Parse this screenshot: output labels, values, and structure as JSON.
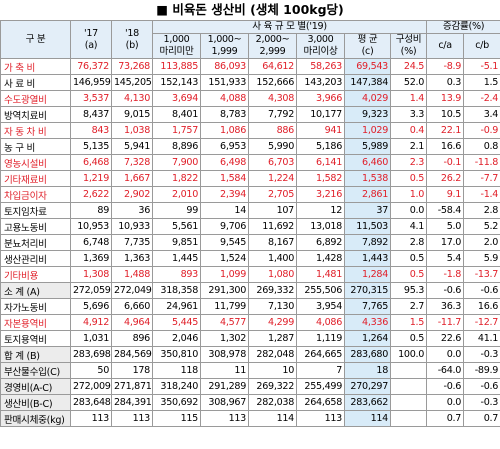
{
  "title": "■ 비육돈 생산비 (생체 100kg당)",
  "header": {
    "item": "구 분",
    "y2017": [
      "'17",
      "(a)"
    ],
    "y2018": [
      "'18",
      "(b)"
    ],
    "group_2019": "사 육 규 모 별('19)",
    "sizes": [
      [
        "1,000",
        "마리미만"
      ],
      [
        "1,000~",
        "1,999"
      ],
      [
        "2,000~",
        "2,999"
      ],
      [
        "3,000",
        "마리이상"
      ]
    ],
    "average": [
      "평 균",
      "(c)"
    ],
    "share": [
      "구성비",
      "(%)"
    ],
    "change": "증감률(%)",
    "ratios": [
      "c/a",
      "c/b"
    ]
  },
  "table": {
    "rows": [
      [
        "가 축 비",
        "76,372",
        "73,268",
        "113,885",
        "86,093",
        "64,612",
        "58,263",
        "69,543",
        "24.5",
        "-8.9",
        "-5.1"
      ],
      [
        "사 료 비",
        "146,959",
        "145,205",
        "152,143",
        "151,933",
        "152,666",
        "143,203",
        "147,384",
        "52.0",
        "0.3",
        "1.5"
      ],
      [
        "수도광열비",
        "3,537",
        "4,130",
        "3,694",
        "4,088",
        "4,308",
        "3,966",
        "4,029",
        "1.4",
        "13.9",
        "-2.4"
      ],
      [
        "방역치료비",
        "8,437",
        "9,015",
        "8,401",
        "8,783",
        "7,792",
        "10,177",
        "9,323",
        "3.3",
        "10.5",
        "3.4"
      ],
      [
        "자 동 차 비",
        "843",
        "1,038",
        "1,757",
        "1,086",
        "886",
        "941",
        "1,029",
        "0.4",
        "22.1",
        "-0.9"
      ],
      [
        "농 구 비",
        "5,135",
        "5,941",
        "8,896",
        "6,953",
        "5,990",
        "5,186",
        "5,989",
        "2.1",
        "16.6",
        "0.8"
      ],
      [
        "영농시설비",
        "6,468",
        "7,328",
        "7,900",
        "6,498",
        "6,703",
        "6,141",
        "6,460",
        "2.3",
        "-0.1",
        "-11.8"
      ],
      [
        "기타재료비",
        "1,219",
        "1,667",
        "1,822",
        "1,584",
        "1,224",
        "1,582",
        "1,538",
        "0.5",
        "26.2",
        "-7.7"
      ],
      [
        "차입금이자",
        "2,622",
        "2,902",
        "2,010",
        "2,394",
        "2,705",
        "3,216",
        "2,861",
        "1.0",
        "9.1",
        "-1.4"
      ],
      [
        "토지임차료",
        "89",
        "36",
        "99",
        "14",
        "107",
        "12",
        "37",
        "0.0",
        "-58.4",
        "2.8"
      ],
      [
        "고용노동비",
        "10,953",
        "10,933",
        "5,561",
        "9,706",
        "11,692",
        "13,018",
        "11,503",
        "4.1",
        "5.0",
        "5.2"
      ],
      [
        "분뇨처리비",
        "6,748",
        "7,735",
        "9,851",
        "9,545",
        "8,167",
        "6,892",
        "7,892",
        "2.8",
        "17.0",
        "2.0"
      ],
      [
        "생산관리비",
        "1,369",
        "1,363",
        "1,445",
        "1,524",
        "1,400",
        "1,428",
        "1,443",
        "0.5",
        "5.4",
        "5.9"
      ],
      [
        "기타비용",
        "1,308",
        "1,488",
        "893",
        "1,099",
        "1,080",
        "1,481",
        "1,284",
        "0.5",
        "-1.8",
        "-13.7"
      ],
      [
        "소 계 (A)",
        "272,059",
        "272,049",
        "318,358",
        "291,300",
        "269,332",
        "255,506",
        "270,315",
        "95.3",
        "-0.6",
        "-0.6"
      ],
      [
        "자가노동비",
        "5,696",
        "6,660",
        "24,961",
        "11,799",
        "7,130",
        "3,954",
        "7,765",
        "2.7",
        "36.3",
        "16.6"
      ],
      [
        "자본용역비",
        "4,912",
        "4,964",
        "5,445",
        "4,577",
        "4,299",
        "4,086",
        "4,336",
        "1.5",
        "-11.7",
        "-12.7"
      ],
      [
        "토지용역비",
        "1,031",
        "896",
        "2,046",
        "1,302",
        "1,287",
        "1,119",
        "1,264",
        "0.5",
        "22.6",
        "41.1"
      ],
      [
        "합 계 (B)",
        "283,698",
        "284,569",
        "350,810",
        "308,978",
        "282,048",
        "264,665",
        "283,680",
        "100.0",
        "0.0",
        "-0.3"
      ],
      [
        "부산물수입(C)",
        "50",
        "178",
        "118",
        "11",
        "10",
        "7",
        "18",
        null,
        "-64.0",
        "-89.9"
      ],
      [
        "경영비(A-C)",
        "272,009",
        "271,871",
        "318,240",
        "291,289",
        "269,322",
        "255,499",
        "270,297",
        null,
        "-0.6",
        "-0.6"
      ],
      [
        "생산비(B-C)",
        "283,648",
        "284,391",
        "350,692",
        "308,967",
        "282,038",
        "264,658",
        "283,662",
        null,
        "0.0",
        "-0.3"
      ],
      [
        "판매시체중(kg)",
        "113",
        "113",
        "115",
        "113",
        "114",
        "113",
        "114",
        null,
        "0.7",
        "0.7"
      ]
    ],
    "row_colors": [
      "#e0202a",
      "#000000",
      "#e0202a",
      "#000000",
      "#e0202a",
      "#000000",
      "#e0202a",
      "#e0202a",
      "#e0202a",
      "#000000",
      "#000000",
      "#000000",
      "#000000",
      "#e0202a",
      "#000000",
      "#000000",
      "#e0202a",
      "#000000",
      "#000000",
      "#000000",
      "#000000",
      "#000000",
      "#000000"
    ]
  }
}
